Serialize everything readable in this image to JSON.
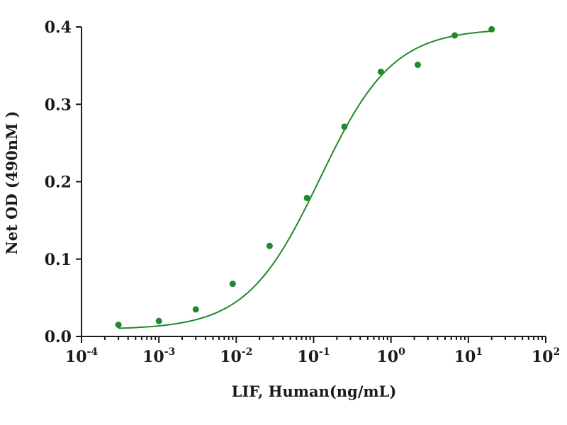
{
  "chart_data": {
    "type": "scatter",
    "title": "",
    "xlabel": "LIF, Human(ng/mL)",
    "ylabel": "Net OD (490nM )",
    "x_scale": "log",
    "xlim": [
      0.0001,
      100
    ],
    "ylim": [
      0.0,
      0.4
    ],
    "x_ticks": [
      {
        "base": "10",
        "exp": "-4",
        "value": 0.0001
      },
      {
        "base": "10",
        "exp": "-3",
        "value": 0.001
      },
      {
        "base": "10",
        "exp": "-2",
        "value": 0.01
      },
      {
        "base": "10",
        "exp": "-1",
        "value": 0.1
      },
      {
        "base": "10",
        "exp": "0",
        "value": 1
      },
      {
        "base": "10",
        "exp": "1",
        "value": 10
      },
      {
        "base": "10",
        "exp": "2",
        "value": 100
      }
    ],
    "y_ticks": [
      {
        "label": "0.0",
        "value": 0.0
      },
      {
        "label": "0.1",
        "value": 0.1
      },
      {
        "label": "0.2",
        "value": 0.2
      },
      {
        "label": "0.3",
        "value": 0.3
      },
      {
        "label": "0.4",
        "value": 0.4
      }
    ],
    "grid": false,
    "color": "#1e8a2a",
    "series": [
      {
        "points": [
          {
            "x": 0.0003,
            "y": 0.015
          },
          {
            "x": 0.001,
            "y": 0.02
          },
          {
            "x": 0.003,
            "y": 0.035
          },
          {
            "x": 0.009,
            "y": 0.068
          },
          {
            "x": 0.027,
            "y": 0.117
          },
          {
            "x": 0.082,
            "y": 0.179
          },
          {
            "x": 0.25,
            "y": 0.271
          },
          {
            "x": 0.74,
            "y": 0.342
          },
          {
            "x": 2.22,
            "y": 0.351
          },
          {
            "x": 6.67,
            "y": 0.389
          },
          {
            "x": 20,
            "y": 0.397
          }
        ],
        "fit": {
          "model": "4PL",
          "bottom": 0.009,
          "top": 0.398,
          "ec50": 0.12,
          "hill": 0.92
        }
      }
    ]
  }
}
